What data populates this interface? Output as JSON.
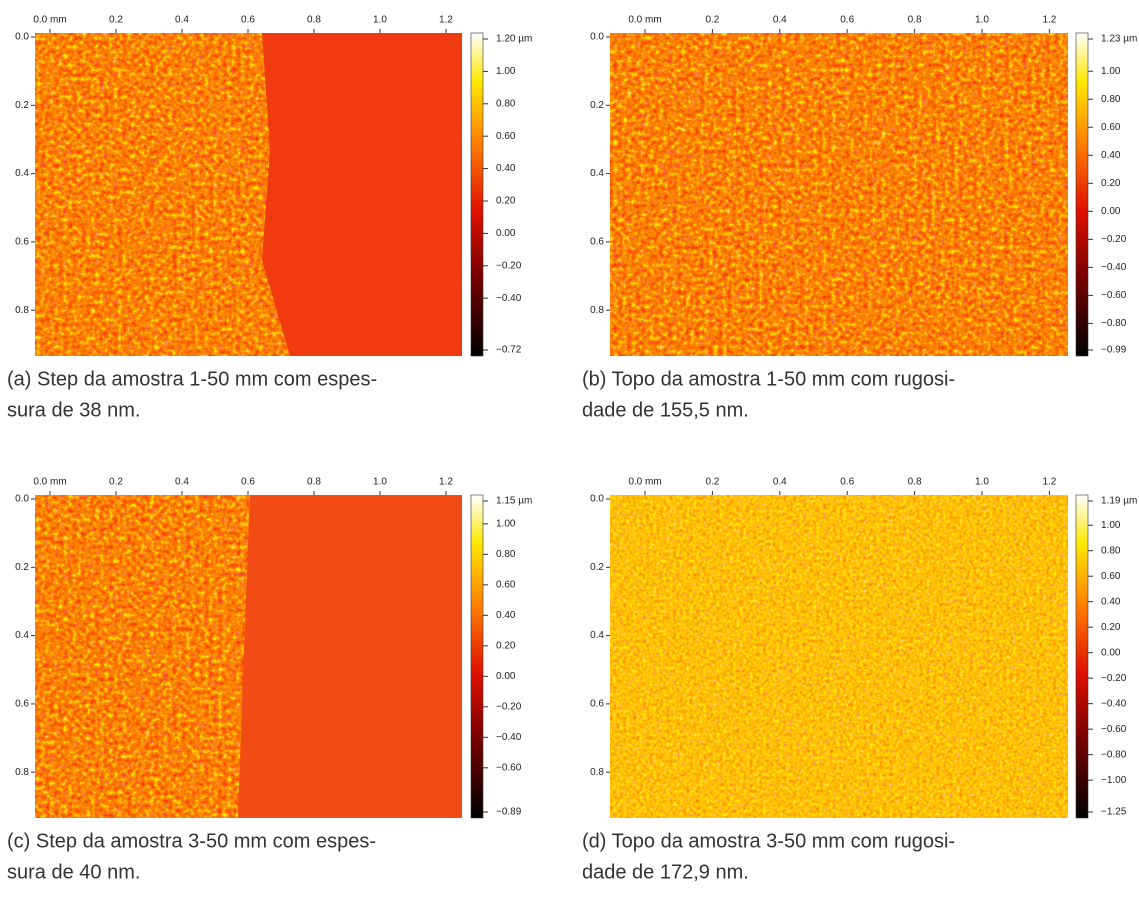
{
  "panels": [
    {
      "x_ticks": [
        "0.0 mm",
        "0.2",
        "0.4",
        "0.6",
        "0.8",
        "1.0",
        "1.2"
      ],
      "y_ticks": [
        "0.0",
        "0.2",
        "0.4",
        "0.6",
        "0.8"
      ],
      "colorbar_ticks": [
        "1.20 µm",
        "1.00",
        "0.80",
        "0.60",
        "0.40",
        "0.20",
        "0.00",
        "−0.20",
        "−0.40",
        "−0.72"
      ],
      "caption": [
        "(a) Step da amostra 1-50 mm com espes-",
        "sura de 38 nm."
      ]
    },
    {
      "x_ticks": [
        "0.0 mm",
        "0.2",
        "0.4",
        "0.6",
        "0.8",
        "1.0",
        "1.2"
      ],
      "y_ticks": [
        "0.0",
        "0.2",
        "0.4",
        "0.6",
        "0.8"
      ],
      "colorbar_ticks": [
        "1.23 µm",
        "1.00",
        "0.80",
        "0.60",
        "0.40",
        "0.20",
        "0.00",
        "−0.20",
        "−0.40",
        "−0.60",
        "−0.80",
        "−0.99"
      ],
      "caption": [
        "(b) Topo da amostra 1-50 mm com rugosi-",
        "dade de 155,5 nm."
      ]
    },
    {
      "x_ticks": [
        "0.0 mm",
        "0.2",
        "0.4",
        "0.6",
        "0.8",
        "1.0",
        "1.2"
      ],
      "y_ticks": [
        "0.0",
        "0.2",
        "0.4",
        "0.6",
        "0.8"
      ],
      "colorbar_ticks": [
        "1.15 µm",
        "1.00",
        "0.80",
        "0.60",
        "0.40",
        "0.20",
        "0.00",
        "−0.20",
        "−0.40",
        "−0.60",
        "−0.89"
      ],
      "caption": [
        "(c) Step da amostra 3-50 mm com espes-",
        "sura de 40 nm."
      ]
    },
    {
      "x_ticks": [
        "0.0 mm",
        "0.2",
        "0.4",
        "0.6",
        "0.8",
        "1.0",
        "1.2"
      ],
      "y_ticks": [
        "0.0",
        "0.2",
        "0.4",
        "0.6",
        "0.8"
      ],
      "colorbar_ticks": [
        "1.19 µm",
        "1.00",
        "0.80",
        "0.60",
        "0.40",
        "0.20",
        "0.00",
        "−0.20",
        "−0.40",
        "−0.60",
        "−0.80",
        "−1.00",
        "−1.25"
      ],
      "caption": [
        "(d) Topo da amostra 3-50 mm com rugosi-",
        "dade de 172,9 nm."
      ]
    }
  ]
}
